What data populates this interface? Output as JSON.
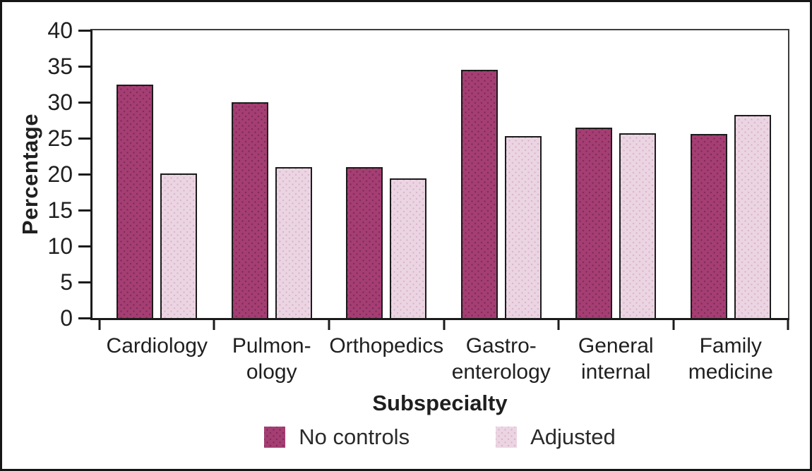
{
  "figure": {
    "background": "#ffffff",
    "border_color": "#161616",
    "text_color": "#1f1f1f"
  },
  "chart_data": {
    "type": "bar",
    "title": "",
    "xlabel": "Subspecialty",
    "ylabel": "Percentage",
    "categories": [
      "Cardiology",
      "Pulmonology",
      "Orthopedics",
      "Gastroenterology",
      "General internal",
      "Family medicine"
    ],
    "category_label_lines": [
      [
        "Cardiology"
      ],
      [
        "Pulmon-",
        "ology"
      ],
      [
        "Orthopedics"
      ],
      [
        "Gastro-",
        "enterology"
      ],
      [
        "General",
        "internal"
      ],
      [
        "Family",
        "medicine"
      ]
    ],
    "series": [
      {
        "name": "No controls",
        "color": "#a53e73",
        "dot_color": "rgba(52,12,38,0.35)",
        "values": [
          32.5,
          30.0,
          21.0,
          34.5,
          26.5,
          25.6
        ]
      },
      {
        "name": "Adjusted",
        "color": "#ecd5e3",
        "dot_color": "rgba(186,128,164,0.38)",
        "values": [
          20.1,
          21.0,
          19.4,
          25.3,
          25.7,
          28.2
        ]
      }
    ],
    "ylim": [
      0,
      40
    ],
    "yticks": [
      0,
      5,
      10,
      15,
      20,
      25,
      30,
      35,
      40
    ],
    "grid": false,
    "legend_position": "bottom"
  }
}
